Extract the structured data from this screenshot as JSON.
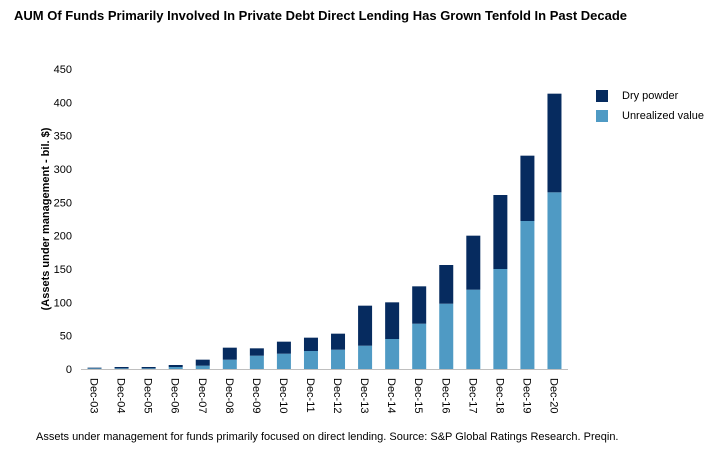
{
  "title": "AUM Of Funds Primarily Involved In Private Debt Direct Lending Has Grown Tenfold In Past Decade",
  "footnote": "Assets under management for funds primarily focused on direct lending. Source: S&P Global Ratings Research. Preqin.",
  "chart_data": {
    "type": "bar",
    "stacked": true,
    "title": "AUM Of Funds Primarily Involved In Private Debt Direct Lending Has Grown Tenfold In Past Decade",
    "xlabel": "",
    "ylabel": "(Assets under management - bil. $)",
    "ylim": [
      0,
      450
    ],
    "yticks": [
      0,
      50,
      100,
      150,
      200,
      250,
      300,
      350,
      400,
      450
    ],
    "grid": false,
    "legend_position": "right",
    "categories": [
      "Dec-03",
      "Dec-04",
      "Dec-05",
      "Dec-06",
      "Dec-07",
      "Dec-08",
      "Dec-09",
      "Dec-10",
      "Dec-11",
      "Dec-12",
      "Dec-13",
      "Dec-14",
      "Dec-15",
      "Dec-16",
      "Dec-17",
      "Dec-18",
      "Dec-19",
      "Dec-20"
    ],
    "series": [
      {
        "name": "Unrealized value",
        "color": "#4f9ac4",
        "values": [
          1,
          1,
          1,
          3,
          5,
          14,
          20,
          23,
          27,
          29,
          35,
          45,
          68,
          98,
          119,
          150,
          222,
          265
        ]
      },
      {
        "name": "Dry powder",
        "color": "#062b5f",
        "values": [
          1,
          2,
          2,
          3,
          9,
          18,
          11,
          18,
          20,
          24,
          60,
          55,
          56,
          58,
          81,
          111,
          98,
          148
        ]
      }
    ]
  }
}
